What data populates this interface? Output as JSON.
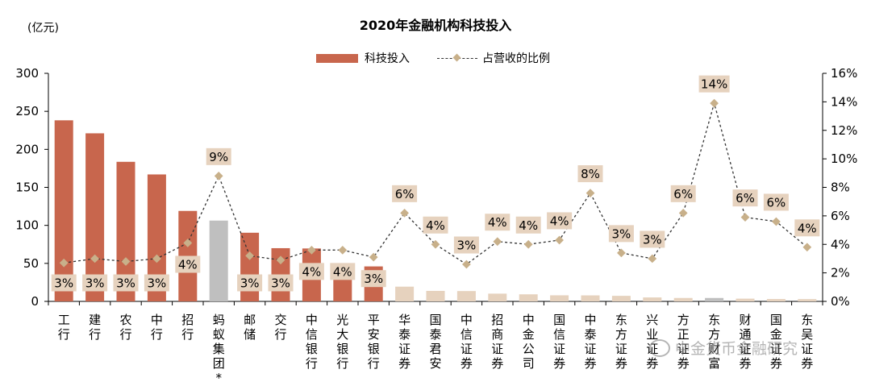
{
  "chart_data": {
    "type": "bar",
    "title": "2020年金融机构科技投入",
    "y_unit_label": "(亿元)",
    "categories": [
      "工行",
      "建行",
      "农行",
      "中行",
      "招行",
      "蚂蚁集团*",
      "邮储",
      "交行",
      "中信银行",
      "光大银行",
      "平安银行",
      "华泰证券",
      "国泰君安",
      "中信证券",
      "招商证券",
      "中金公司",
      "国信证券",
      "中泰证券",
      "东方证券",
      "兴业证券",
      "方正证券",
      "东方财富",
      "财通证券",
      "国金证券",
      "东吴证券"
    ],
    "series": [
      {
        "name": "科技投入",
        "type": "bar",
        "axis": "left",
        "values": [
          238.2,
          221.1,
          183.6,
          167.0,
          119.0,
          106.3,
          90.3,
          70.0,
          69.6,
          47.8,
          46.0,
          19.4,
          13.8,
          13.6,
          10.2,
          9.3,
          8.0,
          7.9,
          7.3,
          5.2,
          4.5,
          4.5,
          3.6,
          3.1,
          3.0
        ]
      },
      {
        "name": "占营收的比例",
        "type": "line",
        "axis": "right",
        "values": [
          2.7,
          3.0,
          2.8,
          3.0,
          4.1,
          8.8,
          3.2,
          2.9,
          3.6,
          3.6,
          3.1,
          6.2,
          4.0,
          2.6,
          4.2,
          4.0,
          4.3,
          7.6,
          3.4,
          3.0,
          6.2,
          13.9,
          5.9,
          5.6,
          3.8
        ],
        "labels": [
          "3%",
          "3%",
          "3%",
          "3%",
          "4%",
          "9%",
          "3%",
          "3%",
          "4%",
          "4%",
          "3%",
          "6%",
          "4%",
          "3%",
          "4%",
          "4%",
          "4%",
          "8%",
          "3%",
          "3%",
          "6%",
          "14%",
          "6%",
          "6%",
          "4%"
        ]
      }
    ],
    "bar_colors": [
      "#C8664D",
      "#C8664D",
      "#C8664D",
      "#C8664D",
      "#C8664D",
      "#BFBFBF",
      "#C8664D",
      "#C8664D",
      "#C8664D",
      "#C8664D",
      "#C8664D",
      "#E6D2BE",
      "#E6D2BE",
      "#E6D2BE",
      "#E6D2BE",
      "#E6D2BE",
      "#E6D2BE",
      "#E6D2BE",
      "#E6D2BE",
      "#E6D2BE",
      "#E6D2BE",
      "#BFBFBF",
      "#E6D2BE",
      "#E6D2BE",
      "#E6D2BE"
    ],
    "line_color": "#333333",
    "marker_color": "#C8B08A",
    "label_bg": "#E6D2BE",
    "ylim_left": [
      0,
      300
    ],
    "yticks_left": [
      "0",
      "50",
      "100",
      "150",
      "200",
      "250",
      "300"
    ],
    "ylim_right": [
      0,
      16
    ],
    "yticks_right": [
      "0%",
      "2%",
      "4%",
      "6%",
      "8%",
      "10%",
      "12%",
      "14%",
      "16%"
    ],
    "legend_position": "top-center",
    "grid": false
  },
  "watermark": "中金货币金融研究"
}
